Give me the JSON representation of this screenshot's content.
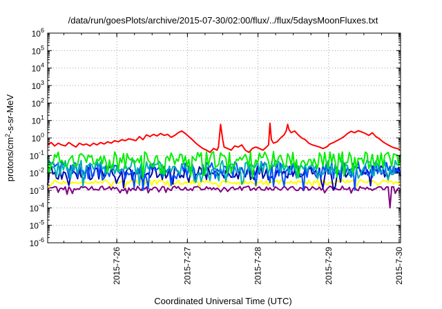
{
  "chart_data": {
    "type": "line",
    "title": "/data/run/goesPlots/archive/2015-07-30/02:00/flux/../flux/5daysMoonFluxes.txt",
    "xlabel": "Coordinated Universal Time (UTC)",
    "ylabel": {
      "base": "protons/cm",
      "sup": "2",
      "rest": "-s-sr-MeV"
    },
    "yscale": "log",
    "ylim_exponents": [
      -6,
      6
    ],
    "y_tick_base": "10",
    "y_tick_exponents": [
      "-6",
      "-5",
      "-4",
      "-3",
      "-2",
      "-1",
      "0",
      "1",
      "2",
      "3",
      "4",
      "5",
      "6"
    ],
    "xlim_days": [
      "2015-07-25 00:30",
      "2015-07-30 00:15"
    ],
    "x_tick_labels": [
      "2015-7-26",
      "2015-7-27",
      "2015-7-28",
      "2015-7-29",
      "2015-7-30"
    ],
    "grid": true,
    "legend": "none",
    "series": [
      {
        "color": "#ff0000",
        "style": "wandering",
        "points": [
          [
            0,
            0.4
          ],
          [
            0.05,
            0.55
          ],
          [
            0.1,
            0.35
          ],
          [
            0.15,
            0.5
          ],
          [
            0.2,
            0.4
          ],
          [
            0.25,
            0.35
          ],
          [
            0.3,
            0.55
          ],
          [
            0.35,
            0.4
          ],
          [
            0.4,
            0.3
          ],
          [
            0.45,
            0.5
          ],
          [
            0.5,
            0.4
          ],
          [
            0.55,
            0.45
          ],
          [
            0.6,
            0.35
          ],
          [
            0.65,
            0.5
          ],
          [
            0.7,
            0.4
          ],
          [
            0.75,
            0.55
          ],
          [
            0.8,
            0.45
          ],
          [
            0.85,
            0.6
          ],
          [
            0.9,
            0.5
          ],
          [
            0.95,
            0.7
          ],
          [
            1.0,
            0.6
          ],
          [
            1.05,
            0.8
          ],
          [
            1.1,
            0.7
          ],
          [
            1.15,
            0.9
          ],
          [
            1.2,
            0.8
          ],
          [
            1.25,
            0.7
          ],
          [
            1.3,
            1.2
          ],
          [
            1.35,
            0.8
          ],
          [
            1.4,
            1.5
          ],
          [
            1.45,
            1.2
          ],
          [
            1.5,
            1.6
          ],
          [
            1.55,
            1.3
          ],
          [
            1.6,
            1.8
          ],
          [
            1.65,
            1.4
          ],
          [
            1.7,
            1.6
          ],
          [
            1.75,
            1.1
          ],
          [
            1.8,
            1.4
          ],
          [
            1.85,
            2.0
          ],
          [
            1.9,
            2.5
          ],
          [
            1.95,
            1.8
          ],
          [
            2.0,
            1.2
          ],
          [
            2.05,
            0.8
          ],
          [
            2.1,
            0.5
          ],
          [
            2.15,
            0.35
          ],
          [
            2.2,
            0.25
          ],
          [
            2.25,
            0.2
          ],
          [
            2.3,
            0.15
          ],
          [
            2.35,
            0.25
          ],
          [
            2.4,
            0.2
          ],
          [
            2.42,
            0.3
          ],
          [
            2.45,
            6.0
          ],
          [
            2.48,
            0.8
          ],
          [
            2.5,
            0.3
          ],
          [
            2.55,
            0.25
          ],
          [
            2.6,
            0.2
          ],
          [
            2.65,
            0.35
          ],
          [
            2.7,
            0.3
          ],
          [
            2.75,
            0.4
          ],
          [
            2.8,
            0.2
          ],
          [
            2.85,
            0.15
          ],
          [
            2.9,
            0.25
          ],
          [
            2.95,
            0.3
          ],
          [
            3.0,
            0.25
          ],
          [
            3.05,
            0.2
          ],
          [
            3.1,
            0.3
          ],
          [
            3.13,
            0.4
          ],
          [
            3.15,
            7.0
          ],
          [
            3.17,
            0.8
          ],
          [
            3.2,
            0.5
          ],
          [
            3.25,
            0.6
          ],
          [
            3.3,
            1.0
          ],
          [
            3.35,
            1.5
          ],
          [
            3.38,
            2.5
          ],
          [
            3.4,
            6.0
          ],
          [
            3.42,
            3.0
          ],
          [
            3.45,
            2.0
          ],
          [
            3.5,
            2.5
          ],
          [
            3.55,
            1.5
          ],
          [
            3.6,
            1.0
          ],
          [
            3.65,
            0.8
          ],
          [
            3.7,
            0.5
          ],
          [
            3.75,
            0.4
          ],
          [
            3.8,
            0.35
          ],
          [
            3.85,
            0.3
          ],
          [
            3.9,
            0.25
          ],
          [
            3.95,
            0.3
          ],
          [
            4.0,
            0.45
          ],
          [
            4.05,
            0.55
          ],
          [
            4.1,
            0.7
          ],
          [
            4.15,
            0.9
          ],
          [
            4.2,
            1.2
          ],
          [
            4.25,
            1.8
          ],
          [
            4.3,
            2.4
          ],
          [
            4.35,
            2.0
          ],
          [
            4.4,
            2.6
          ],
          [
            4.45,
            2.2
          ],
          [
            4.5,
            1.8
          ],
          [
            4.55,
            1.4
          ],
          [
            4.6,
            2.0
          ],
          [
            4.65,
            1.2
          ],
          [
            4.7,
            0.9
          ],
          [
            4.75,
            0.6
          ],
          [
            4.8,
            0.45
          ],
          [
            4.85,
            0.35
          ],
          [
            4.9,
            0.28
          ],
          [
            4.95,
            0.25
          ],
          [
            4.99,
            0.22
          ]
        ]
      },
      {
        "color": "#00ee00",
        "style": "noisy",
        "base": 0.06,
        "jitter": 0.9,
        "seed": 11
      },
      {
        "color": "#00b0b0",
        "style": "noisy",
        "base": 0.02,
        "jitter": 0.9,
        "seed": 23
      },
      {
        "color": "#0050ff",
        "style": "noisy",
        "base": 0.015,
        "jitter": 1.0,
        "seed": 37
      },
      {
        "color": "#0000aa",
        "style": "noisy",
        "base": 0.01,
        "jitter": 0.8,
        "seed": 53
      },
      {
        "color": "#ffff00",
        "style": "noisy",
        "base": 0.003,
        "jitter": 0.25,
        "seed": 71
      },
      {
        "color": "#800080",
        "style": "noisy",
        "base": 0.0013,
        "jitter": 0.25,
        "seed": 97,
        "dips": [
          [
            0.28,
            0.0006
          ],
          [
            4.3,
            0.0007
          ],
          [
            4.85,
            0.0001
          ]
        ]
      }
    ]
  }
}
